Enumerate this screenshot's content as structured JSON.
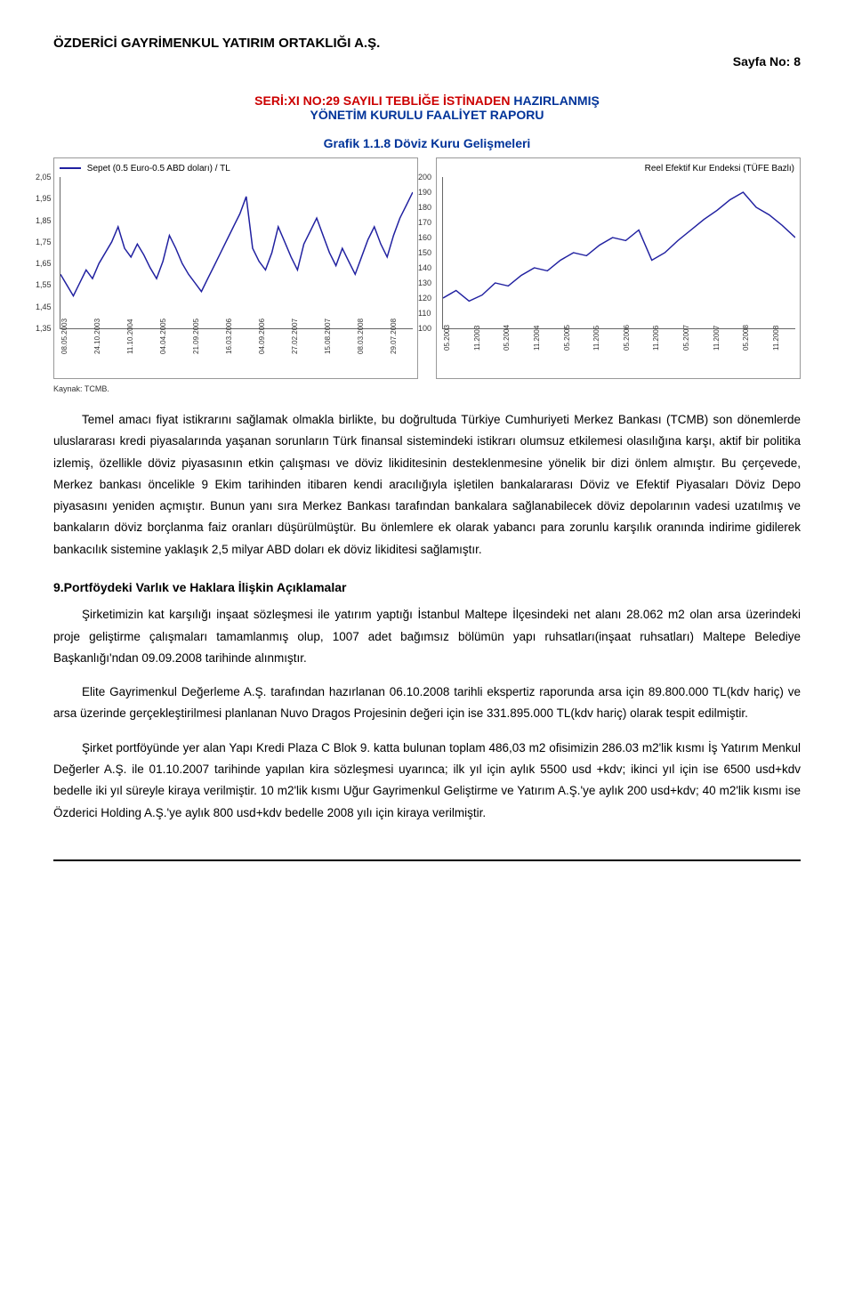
{
  "header": {
    "company": "ÖZDERİCİ GAYRİMENKUL YATIRIM ORTAKLIĞI A.Ş.",
    "page_no": "Sayfa No: 8",
    "seri_red": "SERİ:XI NO:29 SAYILI TEBLİĞE İSTİNADEN",
    "seri_blue": " HAZIRLANMIŞ",
    "sub": "YÖNETİM KURULU FAALİYET RAPORU",
    "grafik": "Grafik 1.1.8 Döviz Kuru Gelişmeleri"
  },
  "chart_left": {
    "type": "line",
    "legend": "Sepet (0.5 Euro-0.5 ABD doları) / TL",
    "yticks": [
      "2,05",
      "1,95",
      "1,85",
      "1,75",
      "1,65",
      "1,55",
      "1,45",
      "1,35"
    ],
    "ylim": [
      1.35,
      2.05
    ],
    "xticks": [
      "08.05.2003",
      "24.10.2003",
      "11.10.2004",
      "04.04.2005",
      "21.09.2005",
      "16.03.2006",
      "04.09.2006",
      "27.02.2007",
      "15.08.2007",
      "08.03.2008",
      "29.07.2008"
    ],
    "line_color": "#2020a0",
    "grid_color": "#ffffff",
    "background_color": "#ffffff",
    "data": [
      1.6,
      1.55,
      1.5,
      1.56,
      1.62,
      1.58,
      1.65,
      1.7,
      1.75,
      1.82,
      1.72,
      1.68,
      1.74,
      1.69,
      1.63,
      1.58,
      1.66,
      1.78,
      1.72,
      1.65,
      1.6,
      1.56,
      1.52,
      1.58,
      1.64,
      1.7,
      1.76,
      1.82,
      1.88,
      1.96,
      1.72,
      1.66,
      1.62,
      1.7,
      1.82,
      1.75,
      1.68,
      1.62,
      1.74,
      1.8,
      1.86,
      1.78,
      1.7,
      1.64,
      1.72,
      1.66,
      1.6,
      1.68,
      1.76,
      1.82,
      1.74,
      1.68,
      1.78,
      1.86,
      1.92,
      1.98
    ]
  },
  "chart_right": {
    "type": "line",
    "legend": "Reel Efektif Kur Endeksi (TÜFE Bazlı)",
    "yticks": [
      "200",
      "190",
      "180",
      "170",
      "160",
      "150",
      "140",
      "130",
      "120",
      "110",
      "100"
    ],
    "ylim": [
      100,
      200
    ],
    "xticks": [
      "05.2003",
      "11.2003",
      "05.2004",
      "11.2004",
      "05.2005",
      "11.2005",
      "05.2006",
      "11.2006",
      "05.2007",
      "11.2007",
      "05.2008",
      "11.2008"
    ],
    "line_color": "#2020a0",
    "grid_color": "#ffffff",
    "background_color": "#ffffff",
    "data": [
      120,
      125,
      118,
      122,
      130,
      128,
      135,
      140,
      138,
      145,
      150,
      148,
      155,
      160,
      158,
      165,
      145,
      150,
      158,
      165,
      172,
      178,
      185,
      190,
      180,
      175,
      168,
      160
    ]
  },
  "kaynak": "Kaynak: TCMB.",
  "body": {
    "p1": "Temel amacı fiyat istikrarını sağlamak olmakla birlikte, bu doğrultuda Türkiye Cumhuriyeti Merkez Bankası (TCMB) son dönemlerde uluslararası kredi piyasalarında yaşanan sorunların Türk finansal sistemindeki istikrarı olumsuz etkilemesi olasılığına karşı, aktif bir politika izlemiş, özellikle döviz piyasasının etkin çalışması ve döviz likiditesinin desteklenmesine yönelik bir dizi önlem almıştır. Bu çerçevede, Merkez bankası öncelikle 9 Ekim tarihinden itibaren kendi aracılığıyla işletilen bankalararası Döviz ve Efektif Piyasaları Döviz Depo piyasasını yeniden açmıştır. Bunun yanı sıra Merkez Bankası tarafından bankalara sağlanabilecek döviz depolarının vadesi uzatılmış ve bankaların döviz borçlanma faiz oranları düşürülmüştür. Bu önlemlere ek olarak yabancı para zorunlu karşılık oranında indirime gidilerek bankacılık sistemine yaklaşık 2,5 milyar ABD doları ek döviz likiditesi sağlamıştır.",
    "section_heading": "9.Portföydeki Varlık ve Haklara İlişkin Açıklamalar",
    "p2": "Şirketimizin kat karşılığı inşaat sözleşmesi ile yatırım yaptığı İstanbul Maltepe İlçesindeki net alanı 28.062 m2 olan arsa üzerindeki proje geliştirme çalışmaları tamamlanmış olup, 1007 adet bağımsız bölümün yapı ruhsatları(inşaat ruhsatları) Maltepe Belediye Başkanlığı'ndan 09.09.2008 tarihinde alınmıştır.",
    "p3": "Elite Gayrimenkul Değerleme A.Ş. tarafından hazırlanan 06.10.2008 tarihli ekspertiz raporunda arsa için 89.800.000 TL(kdv hariç) ve arsa üzerinde gerçekleştirilmesi planlanan Nuvo Dragos Projesinin değeri için ise 331.895.000 TL(kdv hariç) olarak tespit edilmiştir.",
    "p4": "Şirket portföyünde yer alan Yapı Kredi Plaza C Blok 9. katta bulunan toplam 486,03 m2 ofisimizin 286.03 m2'lik kısmı İş Yatırım Menkul Değerler A.Ş. ile 01.10.2007 tarihinde yapılan kira sözleşmesi uyarınca; ilk yıl için aylık 5500 usd +kdv; ikinci yıl için ise 6500 usd+kdv bedelle iki yıl süreyle kiraya verilmiştir. 10 m2'lik kısmı Uğur Gayrimenkul Geliştirme ve Yatırım A.Ş.'ye aylık 200 usd+kdv; 40 m2'lik kısmı ise Özderici Holding A.Ş.'ye aylık 800 usd+kdv bedelle 2008 yılı için kiraya verilmiştir."
  }
}
